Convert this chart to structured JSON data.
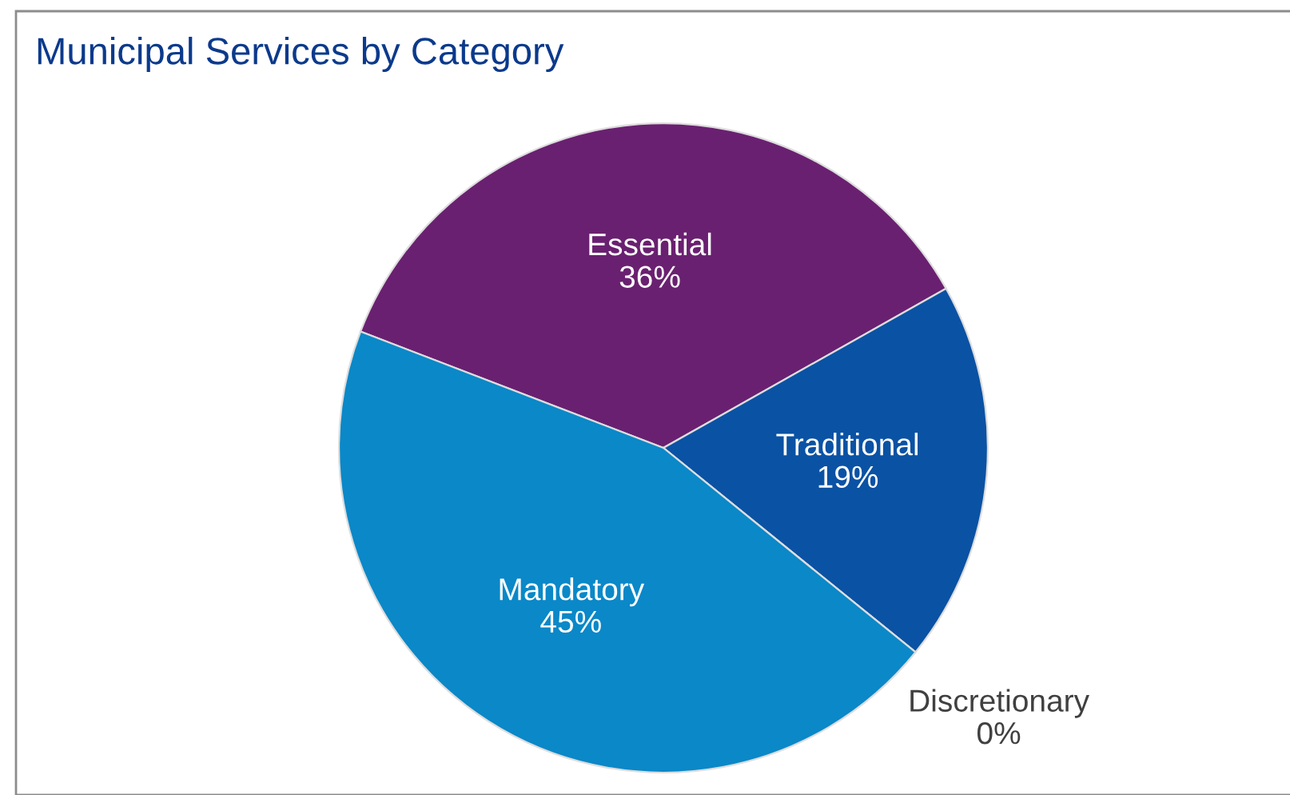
{
  "chart_data": {
    "type": "pie",
    "title": "Municipal Services by Category",
    "categories": [
      "Essential",
      "Traditional",
      "Discretionary",
      "Mandatory"
    ],
    "values": [
      36,
      19,
      0,
      45
    ],
    "value_labels": [
      "36%",
      "19%",
      "0%",
      "45%"
    ],
    "colors": [
      "#6a2070",
      "#0a52a4",
      "#5aa0d8",
      "#0a88c8"
    ]
  }
}
